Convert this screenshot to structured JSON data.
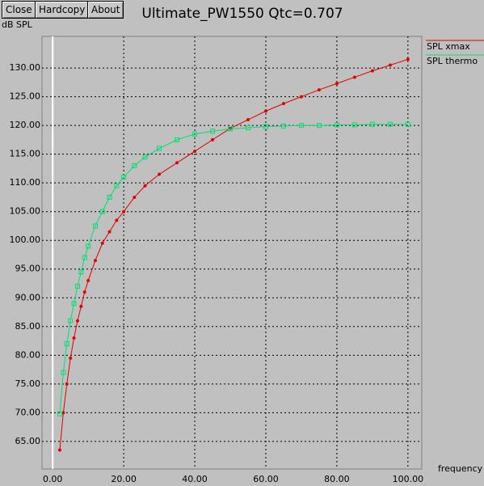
{
  "toolbar": {
    "buttons": [
      "Close",
      "Hardcopy",
      "About"
    ]
  },
  "chart_data": {
    "type": "line",
    "title": "Ultimate_PW1550 Qtc=0.707",
    "y_label": "dB SPL",
    "x_label": "frequency",
    "x": [
      2,
      3,
      4,
      5,
      6,
      7,
      8,
      9,
      10,
      12,
      14,
      16,
      18,
      20,
      23,
      26,
      30,
      35,
      40,
      45,
      50,
      55,
      60,
      65,
      70,
      75,
      80,
      85,
      90,
      95,
      100
    ],
    "series": [
      {
        "name": "SPL xmax",
        "color": "#e00000",
        "marker": "dot",
        "values": [
          63.5,
          70,
          75,
          79.5,
          83,
          86,
          88.5,
          91,
          93,
          96.5,
          99.5,
          101.5,
          103.5,
          105,
          107.5,
          109.5,
          111.5,
          113.5,
          115.5,
          117.5,
          119.5,
          121,
          122.5,
          123.8,
          125,
          126.2,
          127.3,
          128.4,
          129.5,
          130.5,
          131.5
        ]
      },
      {
        "name": "SPL thermo",
        "color": "#00e070",
        "marker": "square",
        "values": [
          69.8,
          77,
          82,
          86,
          89,
          92,
          94.5,
          97,
          99,
          102.5,
          105,
          107.5,
          109.5,
          111,
          113,
          114.5,
          116,
          117.5,
          118.5,
          119,
          119.4,
          119.6,
          119.8,
          119.9,
          120,
          120,
          120.1,
          120.1,
          120.2,
          120.2,
          120.2
        ]
      }
    ],
    "xlim": [
      -3,
      103.9
    ],
    "ylim": [
      60.2,
      135.5
    ],
    "xticks": [
      {
        "value": 0,
        "label": "0.00"
      },
      {
        "value": 20,
        "label": "20.00"
      },
      {
        "value": 40,
        "label": "40.00"
      },
      {
        "value": 60,
        "label": "60.00"
      },
      {
        "value": 80,
        "label": "80.00"
      },
      {
        "value": 100,
        "label": "100.00"
      }
    ],
    "yticks": [
      {
        "value": 65,
        "label": "65.00"
      },
      {
        "value": 70,
        "label": "70.00"
      },
      {
        "value": 75,
        "label": "75.00"
      },
      {
        "value": 80,
        "label": "80.00"
      },
      {
        "value": 85,
        "label": "85.00"
      },
      {
        "value": 90,
        "label": "90.00"
      },
      {
        "value": 95,
        "label": "95.00"
      },
      {
        "value": 100,
        "label": "100.00"
      },
      {
        "value": 105,
        "label": "105.00"
      },
      {
        "value": 110,
        "label": "110.00"
      },
      {
        "value": 115,
        "label": "115.00"
      },
      {
        "value": 120,
        "label": "120.00"
      },
      {
        "value": 125,
        "label": "125.00"
      },
      {
        "value": 130,
        "label": "130.00"
      }
    ],
    "grid": true,
    "legend": "right"
  }
}
